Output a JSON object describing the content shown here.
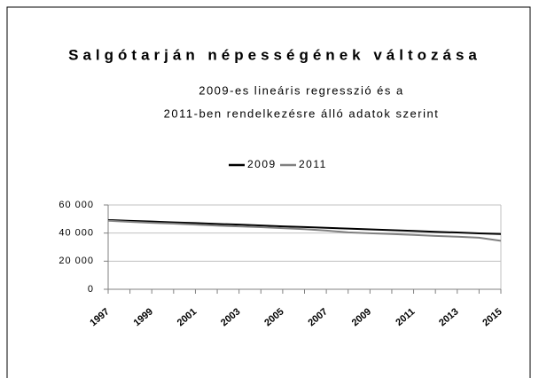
{
  "chart_data": {
    "type": "line",
    "title": "Salgótarján népességének változása",
    "subtitle": [
      "2009-es lineáris regresszió és a",
      "2011-ben rendelkezésre álló adatok szerint"
    ],
    "categories": [
      "1997",
      null,
      "1999",
      null,
      "2001",
      null,
      "2003",
      null,
      "2005",
      null,
      "2007",
      null,
      "2009",
      null,
      "2011",
      null,
      "2013",
      null,
      "2015"
    ],
    "series": [
      {
        "name": "2009",
        "color": "#000000",
        "values": [
          49300,
          48700,
          48200,
          47600,
          47100,
          46500,
          46000,
          45400,
          44800,
          44300,
          43700,
          43200,
          42600,
          42100,
          41500,
          40900,
          40400,
          39800,
          39300
        ]
      },
      {
        "name": "2011",
        "color": "#808080",
        "values": [
          48800,
          48000,
          47300,
          46700,
          46000,
          45300,
          44800,
          44200,
          43500,
          42800,
          41800,
          40500,
          39900,
          39300,
          38700,
          38000,
          37400,
          36700,
          34500
        ]
      }
    ],
    "ylim": [
      0,
      60000
    ],
    "yticks": [
      0,
      {
        "value": 20000,
        "label": "20 000"
      },
      {
        "value": 40000,
        "label": "40 000"
      },
      {
        "value": 60000,
        "label": "60 000"
      }
    ],
    "grid": true,
    "legend": "top"
  }
}
